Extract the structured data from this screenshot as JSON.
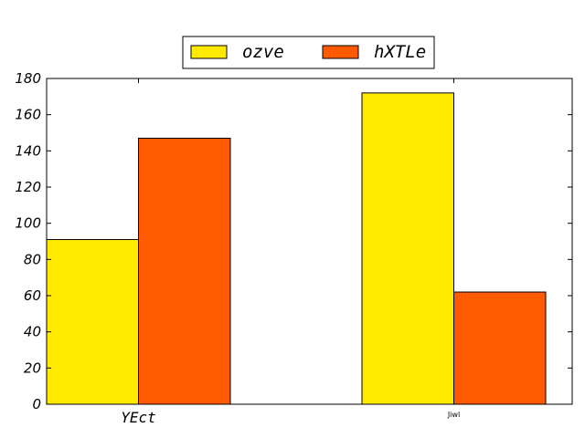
{
  "chart_data": {
    "type": "bar",
    "categories": [
      "YEct",
      "Jiwl"
    ],
    "series": [
      {
        "name": "ozve",
        "values": [
          91,
          172
        ],
        "color": "#ffea00"
      },
      {
        "name": "hXTLe",
        "values": [
          147,
          62
        ],
        "color": "#ff5a00"
      }
    ],
    "ylim": [
      0,
      180
    ],
    "yticks": [
      0,
      20,
      40,
      60,
      80,
      100,
      120,
      140,
      160,
      180
    ],
    "legend_position": "top-center",
    "grid": false
  }
}
